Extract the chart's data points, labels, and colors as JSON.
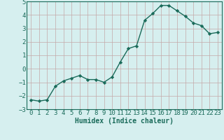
{
  "x": [
    0,
    1,
    2,
    3,
    4,
    5,
    6,
    7,
    8,
    9,
    10,
    11,
    12,
    13,
    14,
    15,
    16,
    17,
    18,
    19,
    20,
    21,
    22,
    23
  ],
  "y": [
    -2.3,
    -2.4,
    -2.3,
    -1.3,
    -0.9,
    -0.7,
    -0.5,
    -0.8,
    -0.8,
    -1.0,
    -0.6,
    0.5,
    1.5,
    1.7,
    3.6,
    4.1,
    4.7,
    4.7,
    4.3,
    3.9,
    3.4,
    3.2,
    2.6,
    2.7
  ],
  "line_color": "#1a6b5a",
  "marker": "D",
  "markersize": 2.2,
  "linewidth": 1.0,
  "background_color": "#d6efef",
  "grid_color": "#c4a8a8",
  "xlabel": "Humidex (Indice chaleur)",
  "ylim": [
    -3,
    5
  ],
  "xlim": [
    -0.5,
    23.5
  ],
  "yticks": [
    -3,
    -2,
    -1,
    0,
    1,
    2,
    3,
    4,
    5
  ],
  "xticks": [
    0,
    1,
    2,
    3,
    4,
    5,
    6,
    7,
    8,
    9,
    10,
    11,
    12,
    13,
    14,
    15,
    16,
    17,
    18,
    19,
    20,
    21,
    22,
    23
  ],
  "label_fontsize": 7,
  "tick_fontsize": 6.5
}
